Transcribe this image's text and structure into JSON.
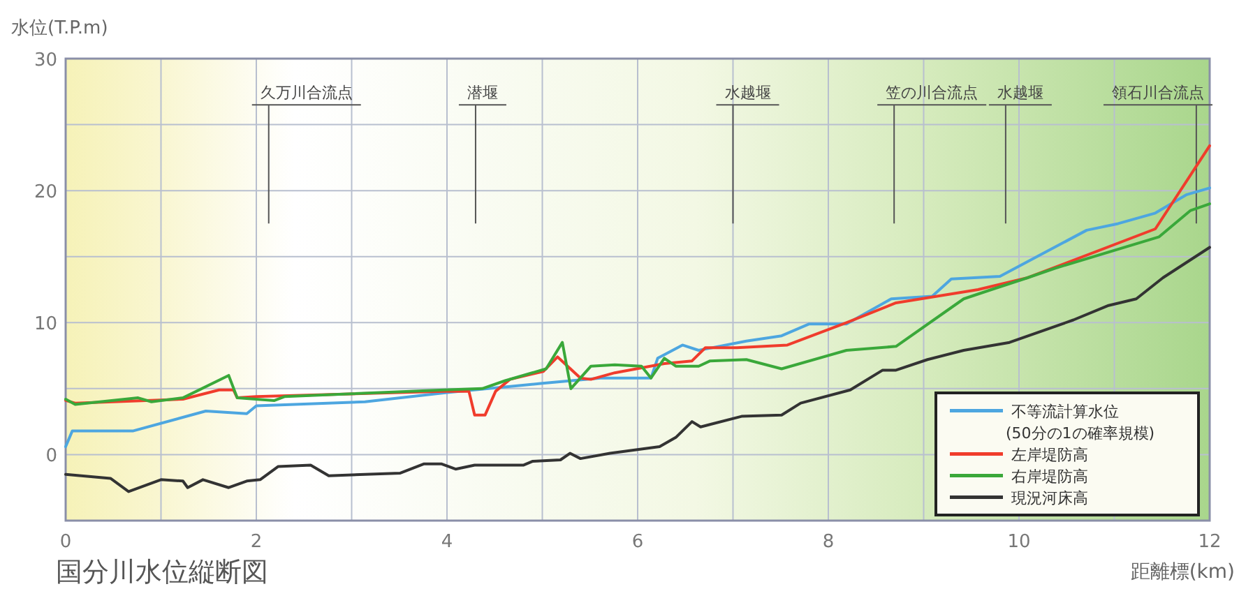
{
  "chart_data": {
    "type": "line",
    "title": "国分川水位縦断図",
    "xlabel": "距離標(km)",
    "ylabel": "水位(T.P.m)",
    "xlim": [
      0,
      12
    ],
    "ylim": [
      -5,
      30
    ],
    "xticks": [
      0,
      {
        "value": 1,
        "label": null
      },
      2,
      {
        "value": 3,
        "label": null
      },
      4,
      {
        "value": 5,
        "label": null
      },
      6,
      {
        "value": 7,
        "label": null
      },
      8,
      {
        "value": 9,
        "label": null
      },
      10,
      {
        "value": 11,
        "label": null
      },
      12
    ],
    "yticks": [
      {
        "value": -5,
        "label": null
      },
      0,
      {
        "value": 5,
        "label": null
      },
      10,
      {
        "value": 15,
        "label": null
      },
      20,
      {
        "value": 25,
        "label": null
      },
      30
    ],
    "grid": true,
    "legend": "bottom right",
    "ref_lines": [
      {
        "axis": "x",
        "value": 2.13,
        "label": "久万川合流点"
      },
      {
        "axis": "x",
        "value": 4.3,
        "label": "潜堰"
      },
      {
        "axis": "x",
        "value": 7.0,
        "label": "水越堰"
      },
      {
        "axis": "x",
        "value": 8.69,
        "label": "笠の川合流点"
      },
      {
        "axis": "x",
        "value": 9.86,
        "label": "水越堰"
      },
      {
        "axis": "x",
        "value": 11.86,
        "label": "領石川合流点"
      }
    ],
    "series": [
      {
        "name": "不等流計算水位 (50分の1の確率規模)",
        "color": "#4da6e0",
        "x": [
          0,
          0.07,
          0.71,
          1.47,
          1.9,
          2.0,
          3.14,
          4.0,
          5.0,
          5.61,
          6.14,
          6.21,
          6.47,
          6.64,
          7.14,
          7.51,
          7.8,
          8.19,
          8.66,
          9.09,
          9.29,
          9.8,
          10.71,
          11.04,
          11.43,
          11.76,
          12
        ],
        "values": [
          0.6,
          1.8,
          1.8,
          3.3,
          3.1,
          3.7,
          4.0,
          4.7,
          5.4,
          5.8,
          5.8,
          7.3,
          8.3,
          7.9,
          8.6,
          9.0,
          9.9,
          9.9,
          11.8,
          12.0,
          13.3,
          13.5,
          17.0,
          17.5,
          18.3,
          19.7,
          20.2
        ]
      },
      {
        "name": "左岸堤防高",
        "color": "#f03c2c",
        "x": [
          0,
          0.1,
          1.23,
          1.61,
          1.76,
          1.8,
          2.0,
          3.97,
          4.23,
          4.29,
          4.4,
          4.51,
          4.66,
          5.01,
          5.16,
          5.4,
          5.51,
          5.76,
          6.28,
          6.57,
          6.71,
          7.04,
          7.57,
          8.19,
          8.71,
          9.57,
          10.09,
          11.43,
          12
        ],
        "values": [
          4.1,
          3.9,
          4.2,
          4.9,
          4.9,
          4.3,
          4.4,
          4.8,
          4.8,
          3.0,
          3.0,
          4.8,
          5.7,
          6.3,
          7.4,
          5.8,
          5.7,
          6.2,
          6.9,
          7.1,
          8.1,
          8.1,
          8.3,
          10.0,
          11.5,
          12.5,
          13.4,
          17.1,
          23.4
        ]
      },
      {
        "name": "右岸堤防高",
        "color": "#3aa83a",
        "x": [
          0,
          0.1,
          0.76,
          0.9,
          1.23,
          1.71,
          1.8,
          2.19,
          2.3,
          3.97,
          4.37,
          4.61,
          5.04,
          5.21,
          5.3,
          5.51,
          5.76,
          6.04,
          6.14,
          6.28,
          6.4,
          6.64,
          6.76,
          7.14,
          7.51,
          8.19,
          8.71,
          9.42,
          9.71,
          10.09,
          10.37,
          11.47,
          11.8,
          12
        ],
        "values": [
          4.2,
          3.8,
          4.3,
          4.0,
          4.3,
          6.0,
          4.3,
          4.1,
          4.4,
          4.9,
          5.0,
          5.6,
          6.5,
          8.5,
          5.0,
          6.7,
          6.8,
          6.7,
          5.8,
          7.3,
          6.7,
          6.7,
          7.1,
          7.2,
          6.5,
          7.9,
          8.2,
          11.8,
          12.5,
          13.4,
          14.1,
          16.5,
          18.5,
          19.0
        ]
      },
      {
        "name": "現況河床高",
        "color": "#333333",
        "x": [
          0,
          0.47,
          0.66,
          1.0,
          1.23,
          1.28,
          1.44,
          1.71,
          1.9,
          2.04,
          2.23,
          2.57,
          2.76,
          3.51,
          3.76,
          3.94,
          4.09,
          4.29,
          4.8,
          4.9,
          5.19,
          5.29,
          5.4,
          5.71,
          6.23,
          6.4,
          6.57,
          6.66,
          7.09,
          7.51,
          7.71,
          8.23,
          8.57,
          8.71,
          9.04,
          9.42,
          9.9,
          10.57,
          10.94,
          11.23,
          11.51,
          12
        ],
        "values": [
          -1.5,
          -1.8,
          -2.8,
          -1.9,
          -2.0,
          -2.5,
          -1.9,
          -2.5,
          -2.0,
          -1.9,
          -0.9,
          -0.8,
          -1.6,
          -1.4,
          -0.7,
          -0.7,
          -1.1,
          -0.8,
          -0.8,
          -0.5,
          -0.4,
          0.1,
          -0.3,
          0.1,
          0.6,
          1.3,
          2.5,
          2.1,
          2.9,
          3.0,
          3.9,
          4.9,
          6.4,
          6.4,
          7.2,
          7.9,
          8.5,
          10.2,
          11.3,
          11.8,
          13.4,
          15.7
        ]
      }
    ]
  }
}
